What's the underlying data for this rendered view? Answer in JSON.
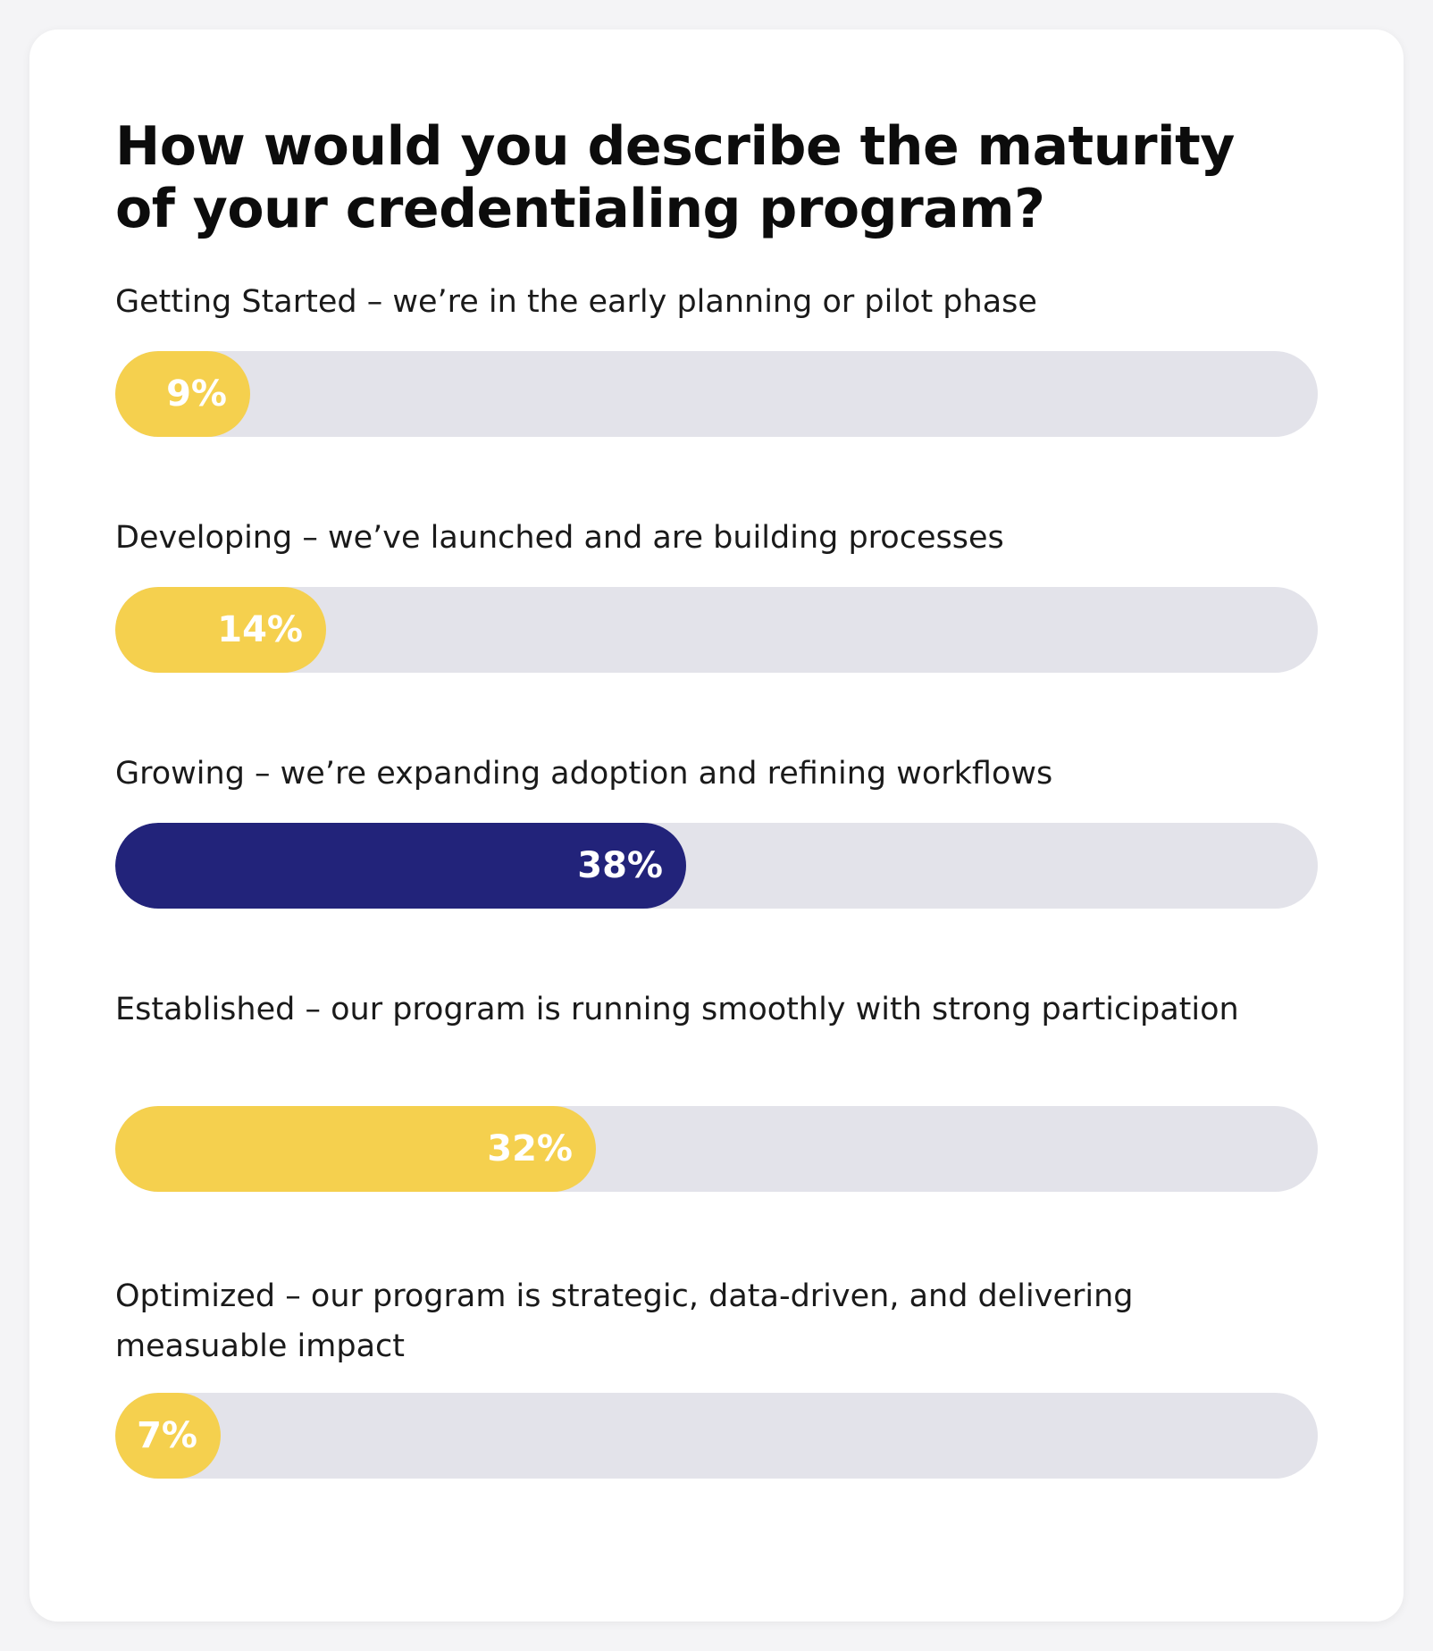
{
  "colors": {
    "accent_yellow": "#F5D04E",
    "accent_navy": "#22237A",
    "track": "#E3E3EA"
  },
  "chart_data": {
    "type": "bar",
    "orientation": "horizontal",
    "title": "How would you describe the maturity of your credentialing program?",
    "xlim": [
      0,
      100
    ],
    "categories": [
      "Getting Started – we’re in the early planning or pilot phase",
      "Developing – we’ve launched and are building processes",
      "Growing – we’re expanding adoption and refining workflows",
      "Established – our program is running smoothly with strong participation",
      "Optimized – our program is strategic, data-driven, and delivering measuable impact"
    ],
    "values": [
      9,
      14,
      38,
      32,
      7
    ],
    "value_labels": [
      "9%",
      "14%",
      "38%",
      "32%",
      "7%"
    ],
    "bar_colors": [
      "#F5D04E",
      "#F5D04E",
      "#22237A",
      "#F5D04E",
      "#F5D04E"
    ]
  }
}
